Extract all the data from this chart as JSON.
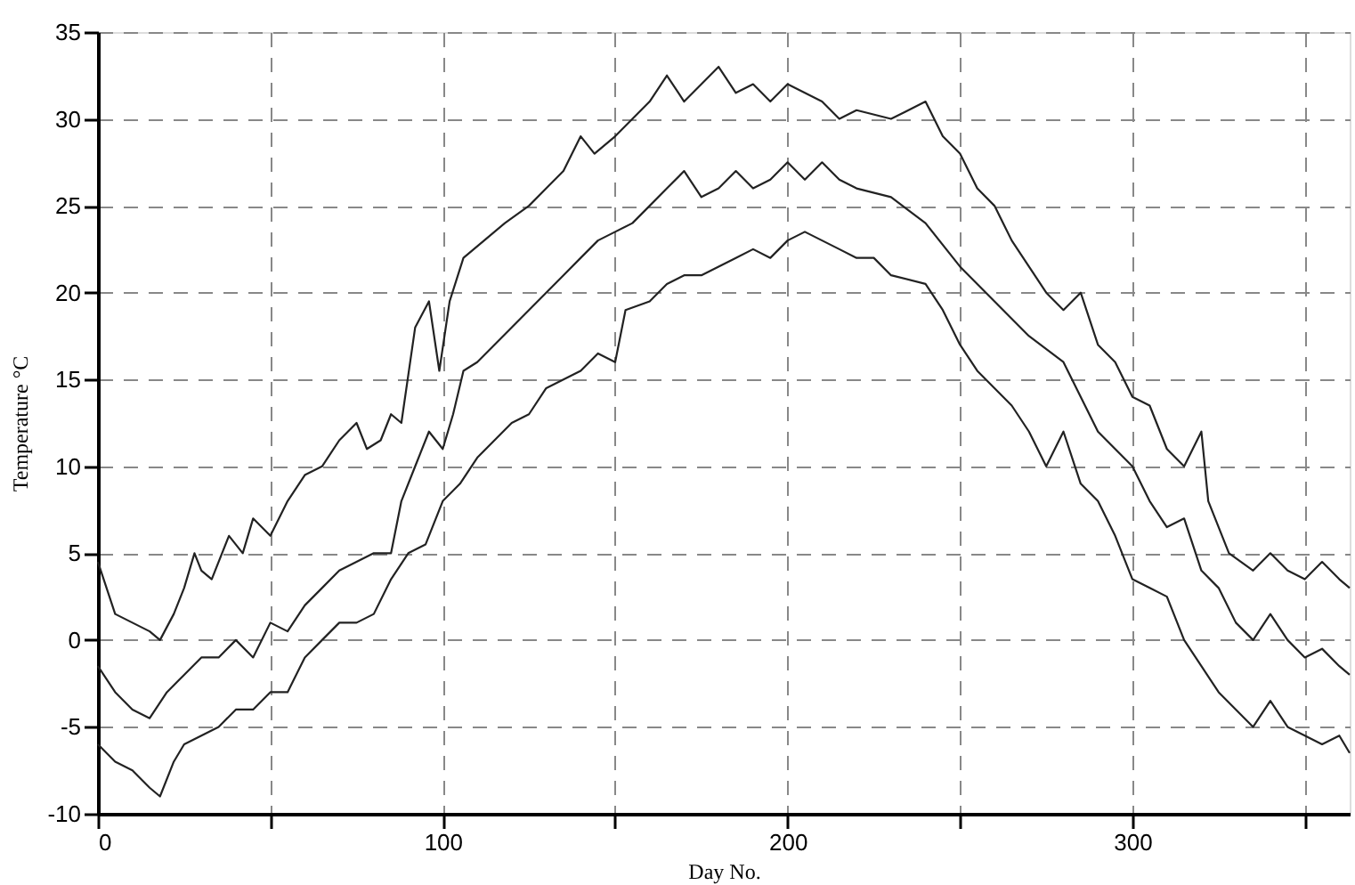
{
  "chart_data": {
    "type": "line",
    "xlabel": "Day No.",
    "ylabel": "Temperature °C",
    "xlim": [
      0,
      363
    ],
    "ylim": [
      -10,
      35
    ],
    "xticks": [
      0,
      {
        "value": 50,
        "label": null
      },
      100,
      {
        "value": 150,
        "label": null
      },
      200,
      {
        "value": 250,
        "label": null
      },
      300,
      {
        "value": 350,
        "label": null
      }
    ],
    "yticks": [
      -10,
      -5,
      0,
      5,
      10,
      15,
      20,
      25,
      30,
      35
    ],
    "grid": true,
    "legend": false,
    "marker": "none",
    "line_style": "solid",
    "series": [
      {
        "color": "#222222",
        "x": [
          0,
          5,
          10,
          15,
          18,
          22,
          25,
          28,
          30,
          33,
          38,
          42,
          45,
          50,
          55,
          60,
          65,
          70,
          75,
          78,
          82,
          85,
          88,
          92,
          96,
          99,
          102,
          106,
          112,
          118,
          125,
          130,
          135,
          140,
          144,
          150,
          155,
          160,
          165,
          170,
          175,
          180,
          185,
          190,
          195,
          200,
          205,
          210,
          215,
          220,
          230,
          240,
          245,
          250,
          255,
          260,
          265,
          270,
          275,
          280,
          285,
          290,
          295,
          300,
          305,
          310,
          315,
          320,
          322,
          328,
          335,
          340,
          345,
          350,
          355,
          360,
          363
        ],
        "values": [
          4.5,
          1.5,
          1,
          0.5,
          0,
          1.5,
          3,
          5,
          4,
          3.5,
          6,
          5,
          7,
          6,
          8,
          9.5,
          10,
          11.5,
          12.5,
          11,
          11.5,
          13,
          12.5,
          18,
          19.5,
          15.5,
          19.5,
          22,
          23,
          24,
          25,
          26,
          27,
          29,
          28,
          29,
          30,
          31,
          32.5,
          31,
          32,
          33,
          31.5,
          32,
          31,
          32,
          31.5,
          31,
          30,
          30.5,
          30,
          31,
          29,
          28,
          26,
          25,
          23,
          21.5,
          20,
          19,
          20,
          17,
          16,
          14,
          13.5,
          11,
          10,
          12,
          8,
          5,
          4,
          5,
          4,
          3.5,
          4.5,
          3.5,
          3
        ]
      },
      {
        "color": "#222222",
        "x": [
          0,
          5,
          10,
          15,
          20,
          25,
          30,
          35,
          40,
          45,
          50,
          55,
          60,
          65,
          70,
          75,
          80,
          85,
          88,
          92,
          96,
          100,
          103,
          106,
          110,
          115,
          120,
          125,
          130,
          135,
          140,
          145,
          150,
          155,
          160,
          165,
          170,
          175,
          180,
          185,
          190,
          195,
          200,
          205,
          210,
          215,
          220,
          230,
          240,
          250,
          260,
          270,
          280,
          290,
          300,
          305,
          310,
          315,
          320,
          325,
          330,
          335,
          340,
          345,
          350,
          355,
          360,
          363
        ],
        "values": [
          -1.5,
          -3,
          -4,
          -4.5,
          -3,
          -2,
          -1,
          -1,
          0,
          -1,
          1,
          0.5,
          2,
          3,
          4,
          4.5,
          5,
          5,
          8,
          10,
          12,
          11,
          13,
          15.5,
          16,
          17,
          18,
          19,
          20,
          21,
          22,
          23,
          23.5,
          24,
          25,
          26,
          27,
          25.5,
          26,
          27,
          26,
          26.5,
          27.5,
          26.5,
          27.5,
          26.5,
          26,
          25.5,
          24,
          21.5,
          19.5,
          17.5,
          16,
          12,
          10,
          8,
          6.5,
          7,
          4,
          3,
          1,
          0,
          1.5,
          0,
          -1,
          -0.5,
          -1.5,
          -2
        ]
      },
      {
        "color": "#222222",
        "x": [
          0,
          5,
          10,
          15,
          18,
          22,
          25,
          30,
          35,
          40,
          45,
          50,
          55,
          60,
          65,
          70,
          75,
          80,
          85,
          90,
          95,
          100,
          105,
          110,
          115,
          120,
          125,
          130,
          135,
          140,
          145,
          150,
          153,
          160,
          165,
          170,
          175,
          180,
          185,
          190,
          195,
          200,
          205,
          210,
          215,
          220,
          225,
          230,
          240,
          245,
          250,
          255,
          260,
          265,
          270,
          275,
          280,
          285,
          290,
          295,
          300,
          305,
          310,
          315,
          320,
          325,
          330,
          335,
          340,
          345,
          350,
          355,
          360,
          363
        ],
        "values": [
          -6,
          -7,
          -7.5,
          -8.5,
          -9,
          -7,
          -6,
          -5.5,
          -5,
          -4,
          -4,
          -3,
          -3,
          -1,
          0,
          1,
          1,
          1.5,
          3.5,
          5,
          5.5,
          8,
          9,
          10.5,
          11.5,
          12.5,
          13,
          14.5,
          15,
          15.5,
          16.5,
          16,
          19,
          19.5,
          20.5,
          21,
          21,
          21.5,
          22,
          22.5,
          22,
          23,
          23.5,
          23,
          22.5,
          22,
          22,
          21,
          20.5,
          19,
          17,
          15.5,
          14.5,
          13.5,
          12,
          10,
          12,
          9,
          8,
          6,
          3.5,
          3,
          2.5,
          0,
          -1.5,
          -3,
          -4,
          -5,
          -3.5,
          -5,
          -5.5,
          -6,
          -5.5,
          -6.5
        ]
      }
    ]
  }
}
